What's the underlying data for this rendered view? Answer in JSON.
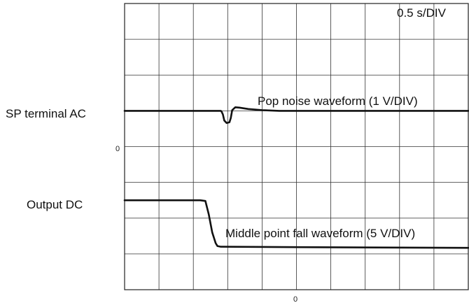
{
  "chart_data": {
    "type": "line",
    "time_scale": "0.5 s/DIV",
    "x_zero_label": "0",
    "grid": true,
    "divisions": {
      "x": 10,
      "y": 8
    },
    "series": [
      {
        "name": "SP terminal AC",
        "annotation": "Pop noise waveform (1 V/DIV)",
        "zero_label": "0",
        "stroke": "#111111",
        "points": [
          [
            -5.0,
            1.0
          ],
          [
            -2.2,
            1.0
          ],
          [
            -2.18,
            0.98
          ],
          [
            -2.14,
            0.9
          ],
          [
            -2.1,
            0.73
          ],
          [
            -2.03,
            0.66
          ],
          [
            -1.95,
            0.68
          ],
          [
            -1.91,
            0.8
          ],
          [
            -1.87,
            1.02
          ],
          [
            -1.78,
            1.1
          ],
          [
            -1.66,
            1.09
          ],
          [
            -1.4,
            1.05
          ],
          [
            -1.0,
            1.02
          ],
          [
            -0.5,
            1.0
          ],
          [
            5.0,
            1.0
          ]
        ]
      },
      {
        "name": "Output DC",
        "annotation": "Middle point fall waveform (5 V/DIV)",
        "stroke": "#111111",
        "points": [
          [
            -5.0,
            -1.5
          ],
          [
            -2.8,
            -1.5
          ],
          [
            -2.65,
            -1.52
          ],
          [
            -2.55,
            -1.9
          ],
          [
            -2.45,
            -2.4
          ],
          [
            -2.35,
            -2.7
          ],
          [
            -2.3,
            -2.78
          ],
          [
            -2.2,
            -2.8
          ],
          [
            0.0,
            -2.81
          ],
          [
            5.0,
            -2.83
          ]
        ]
      }
    ],
    "colors": {
      "trace": "#111111",
      "grid": "#333333",
      "frame": "#222222"
    }
  }
}
